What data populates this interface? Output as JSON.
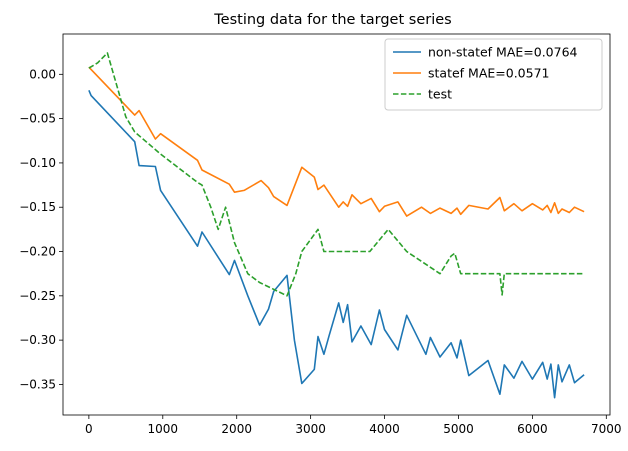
{
  "chart_data": {
    "type": "line",
    "title": "Testing data for the target series",
    "xlabel": "",
    "ylabel": "",
    "xlim": [
      -350,
      7050
    ],
    "ylim": [
      -0.3845,
      0.0455
    ],
    "xticks": [
      0,
      1000,
      2000,
      3000,
      4000,
      5000,
      6000,
      7000
    ],
    "yticks": [
      0.0,
      -0.05,
      -0.1,
      -0.15,
      -0.2,
      -0.25,
      -0.3,
      -0.35
    ],
    "grid": false,
    "legend_position": "top-right",
    "series": [
      {
        "name": "non-statef MAE=0.0764",
        "color": "#1f77b4",
        "dash": "solid",
        "points": [
          [
            0,
            -0.018
          ],
          [
            30,
            -0.024
          ],
          [
            620,
            -0.076
          ],
          [
            680,
            -0.103
          ],
          [
            900,
            -0.104
          ],
          [
            970,
            -0.131
          ],
          [
            1470,
            -0.194
          ],
          [
            1530,
            -0.178
          ],
          [
            1900,
            -0.226
          ],
          [
            1970,
            -0.21
          ],
          [
            2150,
            -0.25
          ],
          [
            2310,
            -0.283
          ],
          [
            2430,
            -0.265
          ],
          [
            2500,
            -0.245
          ],
          [
            2600,
            -0.235
          ],
          [
            2680,
            -0.227
          ],
          [
            2780,
            -0.3
          ],
          [
            2880,
            -0.349
          ],
          [
            3050,
            -0.333
          ],
          [
            3100,
            -0.296
          ],
          [
            3180,
            -0.316
          ],
          [
            3250,
            -0.295
          ],
          [
            3380,
            -0.258
          ],
          [
            3440,
            -0.28
          ],
          [
            3500,
            -0.26
          ],
          [
            3560,
            -0.302
          ],
          [
            3680,
            -0.284
          ],
          [
            3820,
            -0.305
          ],
          [
            3930,
            -0.266
          ],
          [
            4000,
            -0.288
          ],
          [
            4180,
            -0.311
          ],
          [
            4300,
            -0.272
          ],
          [
            4560,
            -0.316
          ],
          [
            4620,
            -0.297
          ],
          [
            4750,
            -0.319
          ],
          [
            4900,
            -0.303
          ],
          [
            4980,
            -0.32
          ],
          [
            5030,
            -0.3
          ],
          [
            5140,
            -0.34
          ],
          [
            5400,
            -0.323
          ],
          [
            5560,
            -0.361
          ],
          [
            5620,
            -0.328
          ],
          [
            5750,
            -0.343
          ],
          [
            5860,
            -0.324
          ],
          [
            6000,
            -0.344
          ],
          [
            6140,
            -0.325
          ],
          [
            6200,
            -0.344
          ],
          [
            6250,
            -0.327
          ],
          [
            6300,
            -0.365
          ],
          [
            6350,
            -0.328
          ],
          [
            6400,
            -0.347
          ],
          [
            6500,
            -0.328
          ],
          [
            6570,
            -0.348
          ],
          [
            6700,
            -0.339
          ]
        ]
      },
      {
        "name": "statef MAE=0.0571",
        "color": "#ff7f0e",
        "dash": "solid",
        "points": [
          [
            0,
            0.008
          ],
          [
            620,
            -0.046
          ],
          [
            680,
            -0.041
          ],
          [
            900,
            -0.073
          ],
          [
            970,
            -0.067
          ],
          [
            1470,
            -0.097
          ],
          [
            1530,
            -0.108
          ],
          [
            1900,
            -0.124
          ],
          [
            1970,
            -0.133
          ],
          [
            2100,
            -0.131
          ],
          [
            2330,
            -0.12
          ],
          [
            2430,
            -0.128
          ],
          [
            2500,
            -0.138
          ],
          [
            2680,
            -0.148
          ],
          [
            2880,
            -0.105
          ],
          [
            3050,
            -0.116
          ],
          [
            3100,
            -0.13
          ],
          [
            3180,
            -0.125
          ],
          [
            3380,
            -0.15
          ],
          [
            3440,
            -0.144
          ],
          [
            3500,
            -0.149
          ],
          [
            3560,
            -0.136
          ],
          [
            3680,
            -0.146
          ],
          [
            3820,
            -0.14
          ],
          [
            3930,
            -0.155
          ],
          [
            4000,
            -0.149
          ],
          [
            4180,
            -0.144
          ],
          [
            4300,
            -0.16
          ],
          [
            4500,
            -0.15
          ],
          [
            4620,
            -0.157
          ],
          [
            4750,
            -0.151
          ],
          [
            4900,
            -0.157
          ],
          [
            4980,
            -0.151
          ],
          [
            5030,
            -0.158
          ],
          [
            5140,
            -0.148
          ],
          [
            5400,
            -0.152
          ],
          [
            5560,
            -0.139
          ],
          [
            5620,
            -0.154
          ],
          [
            5750,
            -0.146
          ],
          [
            5860,
            -0.154
          ],
          [
            6000,
            -0.146
          ],
          [
            6140,
            -0.153
          ],
          [
            6200,
            -0.148
          ],
          [
            6250,
            -0.156
          ],
          [
            6300,
            -0.145
          ],
          [
            6350,
            -0.157
          ],
          [
            6400,
            -0.152
          ],
          [
            6500,
            -0.156
          ],
          [
            6570,
            -0.15
          ],
          [
            6700,
            -0.155
          ]
        ]
      },
      {
        "name": "test",
        "color": "#2ca02c",
        "dash": "dashed",
        "points": [
          [
            0,
            0.007
          ],
          [
            120,
            0.013
          ],
          [
            250,
            0.024
          ],
          [
            500,
            -0.048
          ],
          [
            620,
            -0.065
          ],
          [
            900,
            -0.085
          ],
          [
            970,
            -0.09
          ],
          [
            1470,
            -0.122
          ],
          [
            1530,
            -0.125
          ],
          [
            1650,
            -0.15
          ],
          [
            1750,
            -0.175
          ],
          [
            1850,
            -0.15
          ],
          [
            1970,
            -0.19
          ],
          [
            2150,
            -0.225
          ],
          [
            2310,
            -0.235
          ],
          [
            2680,
            -0.25
          ],
          [
            2800,
            -0.225
          ],
          [
            2880,
            -0.2
          ],
          [
            3100,
            -0.175
          ],
          [
            3180,
            -0.2
          ],
          [
            3800,
            -0.2
          ],
          [
            4050,
            -0.175
          ],
          [
            4300,
            -0.2
          ],
          [
            4750,
            -0.225
          ],
          [
            4900,
            -0.205
          ],
          [
            4950,
            -0.202
          ],
          [
            5030,
            -0.225
          ],
          [
            5560,
            -0.225
          ],
          [
            5590,
            -0.249
          ],
          [
            5620,
            -0.225
          ],
          [
            6700,
            -0.225
          ]
        ]
      }
    ]
  }
}
